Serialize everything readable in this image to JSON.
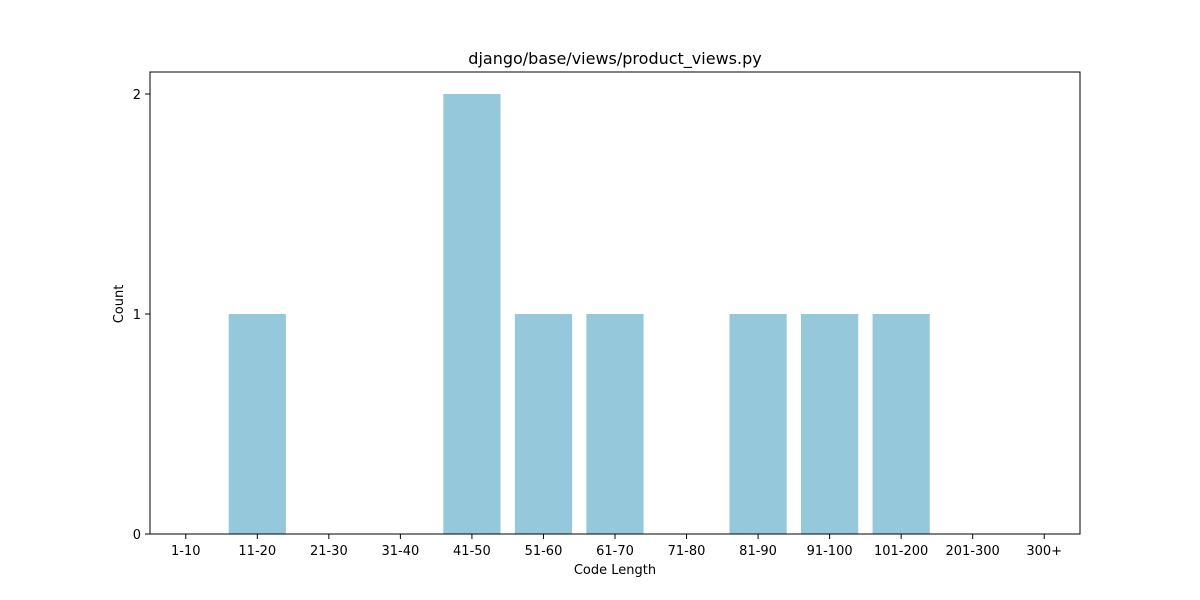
{
  "chart_data": {
    "type": "bar",
    "title": "django/base/views/product_views.py",
    "xlabel": "Code Length",
    "ylabel": "Count",
    "categories": [
      "1-10",
      "11-20",
      "21-30",
      "31-40",
      "41-50",
      "51-60",
      "61-70",
      "71-80",
      "81-90",
      "91-100",
      "101-200",
      "201-300",
      "300+"
    ],
    "values": [
      0,
      1,
      0,
      0,
      2,
      1,
      1,
      0,
      1,
      1,
      1,
      0,
      0
    ],
    "ylim": [
      0,
      2.1
    ],
    "yticks": [
      0,
      1,
      2
    ],
    "bar_color": "#96c8dc",
    "grid": false,
    "legend": "none"
  }
}
